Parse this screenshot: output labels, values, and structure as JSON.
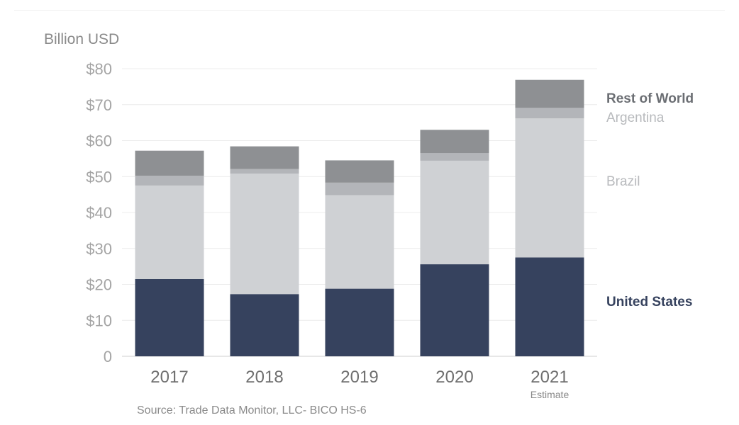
{
  "chart_data": {
    "type": "bar",
    "stacked": true,
    "ylabel": "Billion USD",
    "ylim": [
      0,
      80
    ],
    "yticks": [
      "0",
      "$10",
      "$20",
      "$30",
      "$40",
      "$50",
      "$60",
      "$70",
      "$80"
    ],
    "categories": [
      "2017",
      "2018",
      "2019",
      "2020",
      "2021"
    ],
    "category_notes": [
      "",
      "",
      "",
      "",
      "Estimate"
    ],
    "series": [
      {
        "name": "United States",
        "color": "#36425e",
        "values": [
          21.5,
          17.3,
          18.8,
          25.6,
          27.5
        ]
      },
      {
        "name": "Brazil",
        "color": "#cfd1d4",
        "values": [
          26.0,
          33.5,
          26.0,
          28.8,
          38.7
        ]
      },
      {
        "name": "Argentina",
        "color": "#b3b5b9",
        "values": [
          2.7,
          1.3,
          3.5,
          2.1,
          2.9
        ]
      },
      {
        "name": "Rest of World",
        "color": "#8e9093",
        "values": [
          7.0,
          6.3,
          6.2,
          6.5,
          7.8
        ]
      }
    ],
    "legend_placement": "right",
    "grid": true,
    "source": "Source: Trade Data Monitor, LLC- BICO HS-6"
  },
  "legend_colors": {
    "United States": "#36425e",
    "Brazil": "#b8babd",
    "Argentina": "#b8babd",
    "Rest of World": "#6b6e73"
  }
}
